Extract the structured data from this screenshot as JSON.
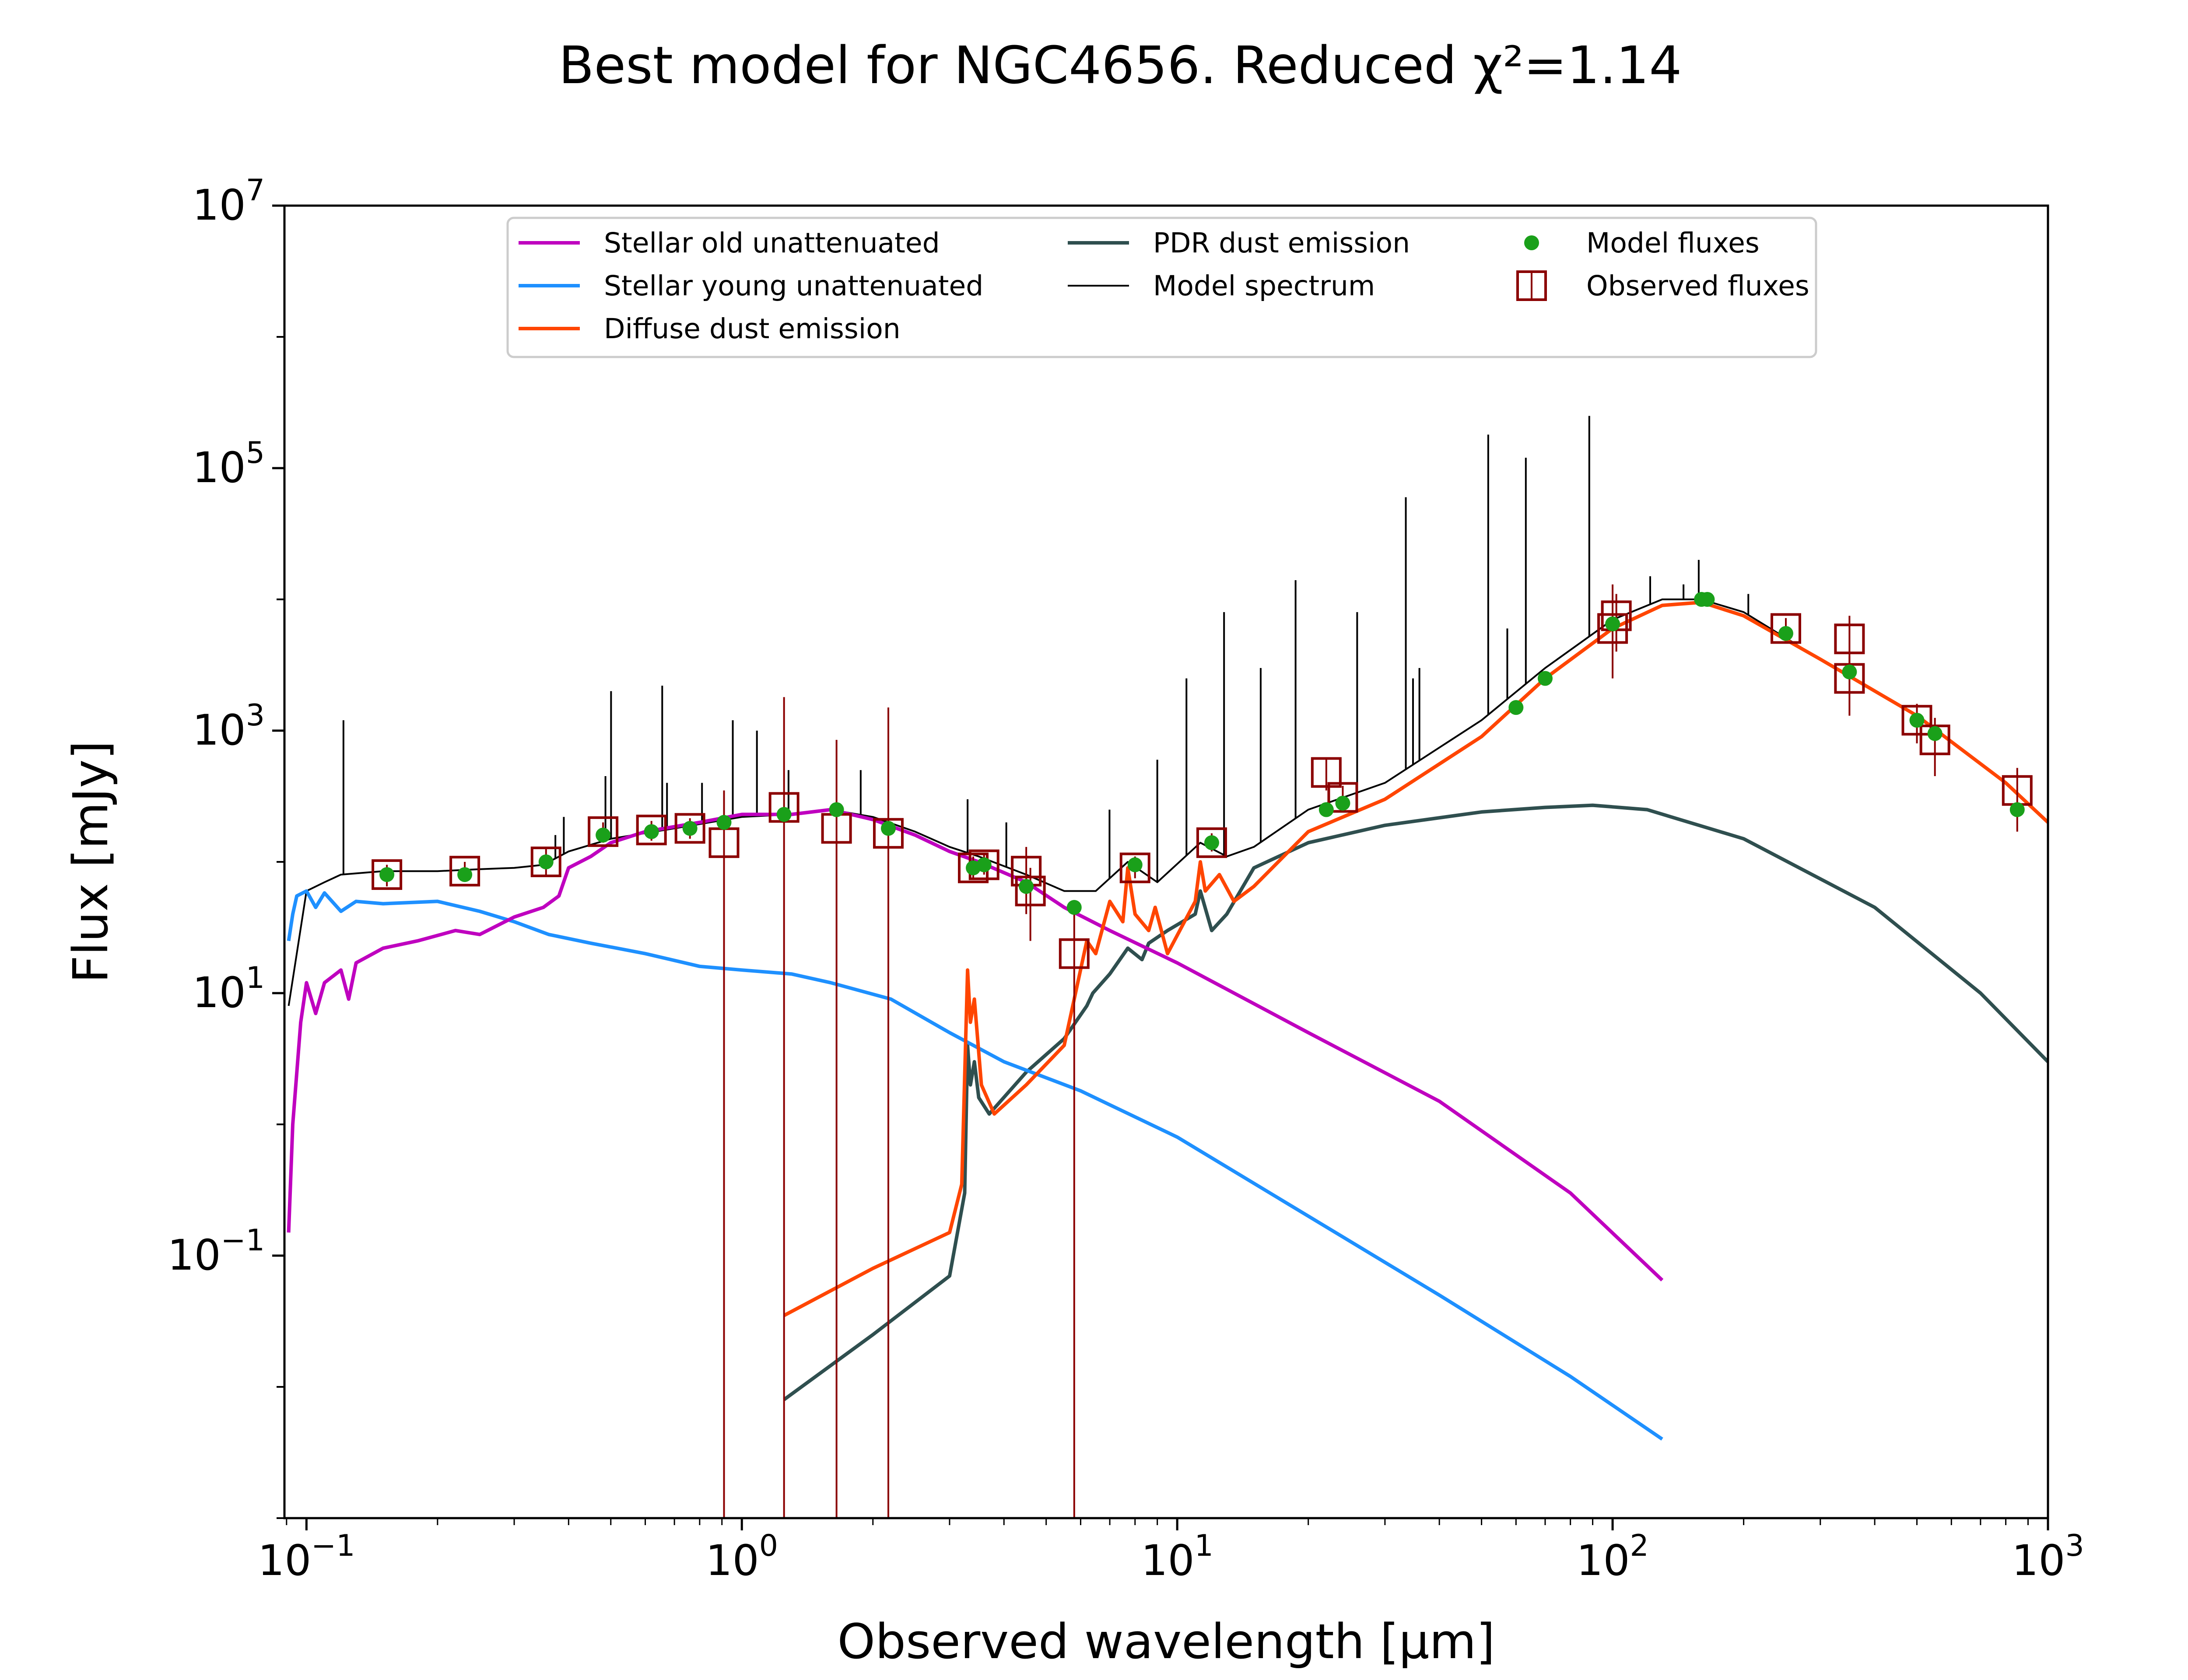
{
  "figure": {
    "title": "Best model for NGC4656. Reduced χ²=1.14",
    "colors": {
      "stellar_old": "#bf00bf",
      "stellar_young": "#1e90ff",
      "diffuse_dust": "#ff4500",
      "pdr_dust": "#2f4f4f",
      "model_spectrum": "#000000",
      "model_fluxes": "#1aa01a",
      "observed_fluxes": "#8b0000"
    }
  },
  "chart_data": {
    "type": "line",
    "title": "Best model for NGC4656. Reduced χ²=1.14",
    "xlabel": "Observed wavelength [μm]",
    "ylabel": "Flux [mJy]",
    "xscale": "log",
    "yscale": "log",
    "xlim": [
      0.089,
      1000
    ],
    "ylim": [
      0.001,
      10000000
    ],
    "xticks": [
      {
        "value": 0.1,
        "base": "10",
        "exp": "−1"
      },
      {
        "value": 1,
        "base": "10",
        "exp": "0"
      },
      {
        "value": 10,
        "base": "10",
        "exp": "1"
      },
      {
        "value": 100,
        "base": "10",
        "exp": "2"
      },
      {
        "value": 1000,
        "base": "10",
        "exp": "3"
      }
    ],
    "yticks": [
      {
        "value": 0.1,
        "base": "10",
        "exp": "−1"
      },
      {
        "value": 10,
        "base": "10",
        "exp": "1"
      },
      {
        "value": 1000,
        "base": "10",
        "exp": "3"
      },
      {
        "value": 100000,
        "base": "10",
        "exp": "5"
      },
      {
        "value": 10000000,
        "base": "10",
        "exp": "7"
      }
    ],
    "grid": false,
    "legend": {
      "placement": "upper center",
      "entries": [
        {
          "label": "Stellar old unattenuated",
          "key": "stellar_old",
          "kind": "line"
        },
        {
          "label": "Stellar young unattenuated",
          "key": "stellar_young",
          "kind": "line"
        },
        {
          "label": "Diffuse dust emission",
          "key": "diffuse_dust",
          "kind": "line"
        },
        {
          "label": "PDR dust emission",
          "key": "pdr_dust",
          "kind": "line"
        },
        {
          "label": "Model spectrum",
          "key": "model_spectrum",
          "kind": "thinline"
        },
        {
          "label": "Model fluxes",
          "key": "model_fluxes",
          "kind": "dot"
        },
        {
          "label": "Observed fluxes",
          "key": "observed_fluxes",
          "kind": "square"
        }
      ]
    },
    "series": [
      {
        "key": "stellar_old",
        "name": "Stellar old unattenuated",
        "color": "#bf00bf",
        "width": 8,
        "points": [
          [
            0.091,
            0.15
          ],
          [
            0.093,
            1.0
          ],
          [
            0.097,
            6
          ],
          [
            0.1,
            12
          ],
          [
            0.105,
            7
          ],
          [
            0.11,
            12
          ],
          [
            0.12,
            15
          ],
          [
            0.125,
            9
          ],
          [
            0.13,
            17
          ],
          [
            0.15,
            22
          ],
          [
            0.18,
            25
          ],
          [
            0.22,
            30
          ],
          [
            0.25,
            28
          ],
          [
            0.3,
            38
          ],
          [
            0.35,
            45
          ],
          [
            0.38,
            55
          ],
          [
            0.4,
            90
          ],
          [
            0.45,
            110
          ],
          [
            0.5,
            140
          ],
          [
            0.6,
            170
          ],
          [
            0.8,
            200
          ],
          [
            1.0,
            230
          ],
          [
            1.3,
            230
          ],
          [
            1.6,
            250
          ],
          [
            2.0,
            210
          ],
          [
            2.5,
            160
          ],
          [
            3.0,
            120
          ],
          [
            3.5,
            100
          ],
          [
            4.5,
            70
          ],
          [
            5.5,
            45
          ],
          [
            7,
            30
          ],
          [
            10,
            17
          ],
          [
            20,
            5
          ],
          [
            40,
            1.5
          ],
          [
            80,
            0.3
          ],
          [
            130,
            0.065
          ]
        ]
      },
      {
        "key": "stellar_young",
        "name": "Stellar young unattenuated",
        "color": "#1e90ff",
        "width": 8,
        "points": [
          [
            0.091,
            25
          ],
          [
            0.093,
            40
          ],
          [
            0.095,
            55
          ],
          [
            0.1,
            60
          ],
          [
            0.105,
            45
          ],
          [
            0.11,
            58
          ],
          [
            0.12,
            42
          ],
          [
            0.13,
            50
          ],
          [
            0.15,
            48
          ],
          [
            0.2,
            50
          ],
          [
            0.25,
            42
          ],
          [
            0.3,
            35
          ],
          [
            0.36,
            28
          ],
          [
            0.45,
            24
          ],
          [
            0.6,
            20
          ],
          [
            0.8,
            16
          ],
          [
            1.0,
            15
          ],
          [
            1.3,
            14
          ],
          [
            1.6,
            12
          ],
          [
            2.2,
            9
          ],
          [
            3,
            5
          ],
          [
            4,
            3
          ],
          [
            6,
            1.8
          ],
          [
            10,
            0.8
          ],
          [
            20,
            0.2
          ],
          [
            40,
            0.05
          ],
          [
            80,
            0.012
          ],
          [
            130,
            0.004
          ]
        ]
      },
      {
        "key": "diffuse_dust",
        "name": "Diffuse dust emission",
        "color": "#ff4500",
        "width": 8,
        "points": [
          [
            1.25,
            0.035
          ],
          [
            2,
            0.08
          ],
          [
            3,
            0.15
          ],
          [
            3.2,
            0.35
          ],
          [
            3.3,
            15
          ],
          [
            3.35,
            6
          ],
          [
            3.42,
            9
          ],
          [
            3.55,
            2
          ],
          [
            3.8,
            1.2
          ],
          [
            4.5,
            2
          ],
          [
            5.5,
            4
          ],
          [
            6.2,
            25
          ],
          [
            6.5,
            20
          ],
          [
            7,
            50
          ],
          [
            7.5,
            35
          ],
          [
            7.7,
            90
          ],
          [
            8,
            40
          ],
          [
            8.6,
            30
          ],
          [
            8.9,
            45
          ],
          [
            9.5,
            20
          ],
          [
            11,
            50
          ],
          [
            11.3,
            100
          ],
          [
            11.6,
            60
          ],
          [
            12.5,
            80
          ],
          [
            13.5,
            50
          ],
          [
            15,
            65
          ],
          [
            20,
            170
          ],
          [
            30,
            300
          ],
          [
            50,
            900
          ],
          [
            70,
            2500
          ],
          [
            100,
            6000
          ],
          [
            130,
            9000
          ],
          [
            160,
            9500
          ],
          [
            200,
            7500
          ],
          [
            300,
            3500
          ],
          [
            500,
            1300
          ],
          [
            800,
            400
          ],
          [
            1000,
            200
          ]
        ]
      },
      {
        "key": "pdr_dust",
        "name": "PDR dust emission",
        "color": "#2f4f4f",
        "width": 8,
        "points": [
          [
            1.25,
            0.008
          ],
          [
            2,
            0.025
          ],
          [
            3,
            0.07
          ],
          [
            3.25,
            0.3
          ],
          [
            3.3,
            4
          ],
          [
            3.35,
            2
          ],
          [
            3.42,
            3
          ],
          [
            3.5,
            1.6
          ],
          [
            3.7,
            1.2
          ],
          [
            4.5,
            2.5
          ],
          [
            5.5,
            4.5
          ],
          [
            6.2,
            8
          ],
          [
            6.4,
            10
          ],
          [
            7,
            14
          ],
          [
            7.7,
            22
          ],
          [
            8.3,
            18
          ],
          [
            8.6,
            24
          ],
          [
            9.5,
            30
          ],
          [
            11,
            40
          ],
          [
            11.3,
            60
          ],
          [
            12,
            30
          ],
          [
            13,
            40
          ],
          [
            15,
            90
          ],
          [
            20,
            140
          ],
          [
            30,
            190
          ],
          [
            50,
            240
          ],
          [
            70,
            260
          ],
          [
            90,
            270
          ],
          [
            120,
            250
          ],
          [
            200,
            150
          ],
          [
            400,
            45
          ],
          [
            700,
            10
          ],
          [
            1000,
            3
          ]
        ]
      },
      {
        "key": "model_spectrum",
        "name": "Model spectrum",
        "color": "#000000",
        "width": 4,
        "points": [
          [
            0.091,
            8
          ],
          [
            0.1,
            60
          ],
          [
            0.11,
            70
          ],
          [
            0.12,
            80
          ],
          [
            0.15,
            85
          ],
          [
            0.2,
            85
          ],
          [
            0.25,
            88
          ],
          [
            0.3,
            90
          ],
          [
            0.35,
            95
          ],
          [
            0.4,
            120
          ],
          [
            0.5,
            150
          ],
          [
            0.7,
            180
          ],
          [
            1.0,
            220
          ],
          [
            1.3,
            230
          ],
          [
            1.6,
            250
          ],
          [
            2.0,
            220
          ],
          [
            2.5,
            170
          ],
          [
            3.0,
            130
          ],
          [
            3.5,
            110
          ],
          [
            4.5,
            80
          ],
          [
            5.5,
            60
          ],
          [
            6.5,
            60
          ],
          [
            7.7,
            100
          ],
          [
            9,
            70
          ],
          [
            11.3,
            140
          ],
          [
            13,
            110
          ],
          [
            15,
            130
          ],
          [
            20,
            250
          ],
          [
            30,
            400
          ],
          [
            50,
            1200
          ],
          [
            70,
            3000
          ],
          [
            100,
            7000
          ],
          [
            130,
            10000
          ],
          [
            160,
            10000
          ],
          [
            200,
            8000
          ],
          [
            300,
            3500
          ],
          [
            500,
            1300
          ],
          [
            800,
            400
          ],
          [
            1000,
            200
          ]
        ]
      }
    ],
    "emission_lines": [
      {
        "x": 0.1216,
        "top": 1200
      },
      {
        "x": 0.373,
        "top": 160
      },
      {
        "x": 0.39,
        "top": 220
      },
      {
        "x": 0.4861,
        "top": 450
      },
      {
        "x": 0.5007,
        "top": 2000
      },
      {
        "x": 0.6563,
        "top": 2200
      },
      {
        "x": 0.6731,
        "top": 400
      },
      {
        "x": 0.81,
        "top": 400
      },
      {
        "x": 0.9532,
        "top": 1200
      },
      {
        "x": 1.083,
        "top": 1000
      },
      {
        "x": 1.28,
        "top": 500
      },
      {
        "x": 1.875,
        "top": 500
      },
      {
        "x": 3.3,
        "top": 300
      },
      {
        "x": 4.05,
        "top": 200
      },
      {
        "x": 6.99,
        "top": 250
      },
      {
        "x": 9.0,
        "top": 600
      },
      {
        "x": 10.5,
        "top": 2500
      },
      {
        "x": 12.81,
        "top": 8000
      },
      {
        "x": 15.55,
        "top": 3000
      },
      {
        "x": 18.7,
        "top": 14000
      },
      {
        "x": 25.9,
        "top": 8000
      },
      {
        "x": 33.5,
        "top": 60000
      },
      {
        "x": 34.8,
        "top": 2500
      },
      {
        "x": 36,
        "top": 3000
      },
      {
        "x": 51.8,
        "top": 180000
      },
      {
        "x": 57.3,
        "top": 6000
      },
      {
        "x": 63.2,
        "top": 120000
      },
      {
        "x": 88.4,
        "top": 250000
      },
      {
        "x": 122,
        "top": 15000
      },
      {
        "x": 145.5,
        "top": 13000
      },
      {
        "x": 157.7,
        "top": 20000
      },
      {
        "x": 205,
        "top": 11000
      }
    ],
    "model_fluxes": [
      [
        0.153,
        80
      ],
      [
        0.231,
        80
      ],
      [
        0.355,
        100
      ],
      [
        0.48,
        160
      ],
      [
        0.62,
        170
      ],
      [
        0.76,
        180
      ],
      [
        0.91,
        200
      ],
      [
        1.25,
        230
      ],
      [
        1.65,
        250
      ],
      [
        2.17,
        180
      ],
      [
        3.4,
        90
      ],
      [
        3.6,
        95
      ],
      [
        4.5,
        65
      ],
      [
        5.8,
        45
      ],
      [
        8.0,
        95
      ],
      [
        12,
        140
      ],
      [
        22,
        250
      ],
      [
        24,
        280
      ],
      [
        60,
        1500
      ],
      [
        70,
        2500
      ],
      [
        100,
        6500
      ],
      [
        160,
        10000
      ],
      [
        165,
        10000
      ],
      [
        250,
        5500
      ],
      [
        350,
        2800
      ],
      [
        500,
        1200
      ],
      [
        550,
        950
      ],
      [
        850,
        250
      ]
    ],
    "observed_fluxes": [
      {
        "x": 0.153,
        "y": 80,
        "lo": 65,
        "hi": 95
      },
      {
        "x": 0.231,
        "y": 85,
        "lo": 72,
        "hi": 100
      },
      {
        "x": 0.355,
        "y": 100,
        "lo": 80,
        "hi": 125
      },
      {
        "x": 0.48,
        "y": 170,
        "lo": 140,
        "hi": 200
      },
      {
        "x": 0.62,
        "y": 175,
        "lo": 145,
        "hi": 205
      },
      {
        "x": 0.76,
        "y": 180,
        "lo": 150,
        "hi": 215
      },
      {
        "x": 0.91,
        "y": 140,
        "lo": 0.001,
        "hi": 350
      },
      {
        "x": 1.25,
        "y": 260,
        "lo": 0.001,
        "hi": 1800
      },
      {
        "x": 1.65,
        "y": 180,
        "lo": 0.001,
        "hi": 850
      },
      {
        "x": 2.17,
        "y": 165,
        "lo": 0.001,
        "hi": 1500
      },
      {
        "x": 3.4,
        "y": 90,
        "lo": 75,
        "hi": 110
      },
      {
        "x": 3.6,
        "y": 95,
        "lo": 80,
        "hi": 115
      },
      {
        "x": 4.5,
        "y": 85,
        "lo": 40,
        "hi": 130
      },
      {
        "x": 4.6,
        "y": 60,
        "lo": 25,
        "hi": 90
      },
      {
        "x": 5.8,
        "y": 20,
        "lo": 0.001,
        "hi": 45
      },
      {
        "x": 8.0,
        "y": 90,
        "lo": 75,
        "hi": 110
      },
      {
        "x": 12,
        "y": 140,
        "lo": 120,
        "hi": 165
      },
      {
        "x": 22,
        "y": 480,
        "lo": 350,
        "hi": 620
      },
      {
        "x": 24,
        "y": 310,
        "lo": 240,
        "hi": 380
      },
      {
        "x": 100,
        "y": 6000,
        "lo": 2500,
        "hi": 13000
      },
      {
        "x": 102,
        "y": 7500,
        "lo": 4000,
        "hi": 11000
      },
      {
        "x": 250,
        "y": 6000,
        "lo": 5000,
        "hi": 7200
      },
      {
        "x": 350,
        "y": 5000,
        "lo": 2800,
        "hi": 7500
      },
      {
        "x": 350,
        "y": 2500,
        "lo": 1300,
        "hi": 3700
      },
      {
        "x": 500,
        "y": 1200,
        "lo": 800,
        "hi": 1600
      },
      {
        "x": 550,
        "y": 850,
        "lo": 450,
        "hi": 1250
      },
      {
        "x": 850,
        "y": 350,
        "lo": 170,
        "hi": 520
      }
    ]
  }
}
